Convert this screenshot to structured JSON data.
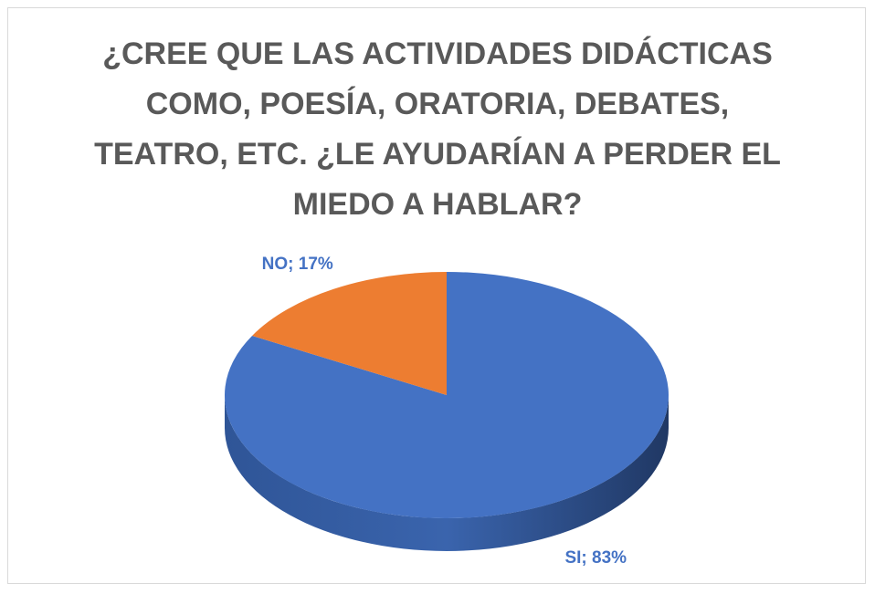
{
  "chart_data": {
    "type": "pie",
    "title": "¿CREE QUE LAS ACTIVIDADES DIDÁCTICAS COMO, POESÍA, ORATORIA, DEBATES, TEATRO, ETC. ¿LE AYUDARÍAN A PERDER EL MIEDO A HABLAR?",
    "categories": [
      "SI",
      "NO"
    ],
    "values": [
      83,
      17
    ],
    "value_labels": [
      "SI; 83%",
      "NO; 17%"
    ],
    "colors": [
      "#4472c4",
      "#ed7d31"
    ]
  }
}
